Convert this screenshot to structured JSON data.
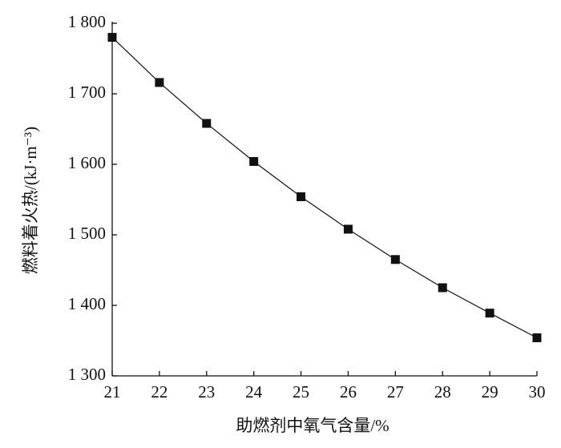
{
  "chart_data": {
    "type": "line",
    "x_label": "助燃剂中氧气含量/%",
    "y_label": "燃料着火热/(kJ·m⁻³)",
    "x": [
      21,
      22,
      23,
      24,
      25,
      26,
      27,
      28,
      29,
      30
    ],
    "series": [
      {
        "name": "燃料着火热",
        "color": "#111111",
        "values": [
          1780,
          1716,
          1658,
          1604,
          1554,
          1508,
          1465,
          1425,
          1389,
          1354
        ]
      }
    ],
    "xlim": [
      21,
      30
    ],
    "xticks": [
      21,
      22,
      23,
      24,
      25,
      26,
      27,
      28,
      29,
      30
    ],
    "ylim": [
      1300,
      1800
    ],
    "yticks": [
      {
        "value": 1300,
        "label": "1 300"
      },
      {
        "value": 1400,
        "label": "1 400"
      },
      {
        "value": 1500,
        "label": "1 500"
      },
      {
        "value": 1600,
        "label": "1 600"
      },
      {
        "value": 1700,
        "label": "1 700"
      },
      {
        "value": 1800,
        "label": "1 800"
      }
    ],
    "grid": false
  }
}
